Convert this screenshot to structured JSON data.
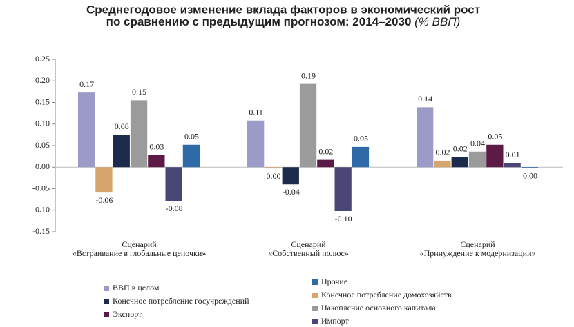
{
  "chart_data": {
    "type": "bar",
    "title": [
      "Среднегодовое изменение вклада факторов в экономический рост",
      "по сравнению с предыдущим прогнозом: 2014–2030"
    ],
    "title_unit": "(% ВВП)",
    "categories": [
      [
        "Сценарий",
        "«Встраивание в глобальные цепочки»"
      ],
      [
        "Сценарий",
        "«Собственный полюс»"
      ],
      [
        "Сценарий",
        "«Принуждение к модернизации»"
      ]
    ],
    "series": [
      {
        "name": "ВВП в целом",
        "color": "#9c9bc8",
        "values": [
          0.173,
          0.108,
          0.139
        ],
        "value_labels": [
          "0.17",
          "0.11",
          "0.14"
        ]
      },
      {
        "name": "Конечное потребление домохозяйств",
        "color": "#d4a56c",
        "values": [
          -0.059,
          -0.003,
          0.015
        ],
        "value_labels": [
          "-0.06",
          "0.00",
          "0.02"
        ]
      },
      {
        "name": "Конечное потребление госучреждений",
        "color": "#1c2a4b",
        "values": [
          0.075,
          -0.04,
          0.023
        ],
        "value_labels": [
          "0.08",
          "-0.04",
          "0.02"
        ]
      },
      {
        "name": "Накопление основного капитала",
        "color": "#9b9b9b",
        "values": [
          0.155,
          0.193,
          0.036
        ],
        "value_labels": [
          "0.15",
          "0.19",
          "0.04"
        ]
      },
      {
        "name": "Экспорт",
        "color": "#5c1a47",
        "values": [
          0.028,
          0.017,
          0.052
        ],
        "value_labels": [
          "0.03",
          "0.02",
          "0.05"
        ]
      },
      {
        "name": "Импорт",
        "color": "#4a4776",
        "values": [
          -0.078,
          -0.102,
          0.01
        ],
        "value_labels": [
          "-0.08",
          "-0.10",
          "0.01"
        ]
      },
      {
        "name": "Прочие",
        "color": "#2f6aa8",
        "values": [
          0.052,
          0.047,
          -0.002
        ],
        "value_labels": [
          "0.05",
          "0.05",
          "0.00"
        ]
      }
    ],
    "ylim": [
      -0.15,
      0.25
    ],
    "yticks": [
      {
        "value": -0.15,
        "label": "-0.15"
      },
      {
        "value": -0.1,
        "label": "-0.10"
      },
      {
        "value": -0.05,
        "label": "-0.05"
      },
      {
        "value": 0,
        "label": "0.00"
      },
      {
        "value": 0.05,
        "label": "0.05"
      },
      {
        "value": 0.1,
        "label": "0.10"
      },
      {
        "value": 0.15,
        "label": "0.15"
      },
      {
        "value": 0.2,
        "label": "0.20"
      },
      {
        "value": 0.25,
        "label": "0.25"
      }
    ]
  }
}
